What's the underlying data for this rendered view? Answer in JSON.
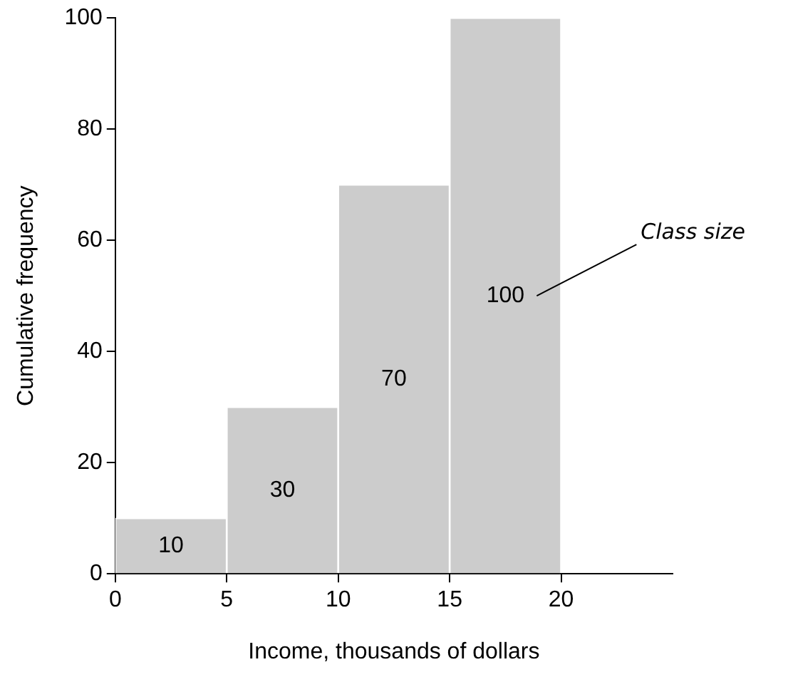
{
  "chart_data": {
    "type": "histogram",
    "xlabel": "Income, thousands of dollars",
    "ylabel": "Cumulative frequency",
    "bins": [
      0,
      5,
      10,
      15,
      20
    ],
    "values": [
      10,
      30,
      70,
      100
    ],
    "color": "#cccccc",
    "xlim": [
      0,
      25
    ],
    "xticks": [
      0,
      5,
      10,
      15,
      20
    ],
    "ylim": [
      0,
      100
    ],
    "yticks": [
      0,
      20,
      40,
      60,
      80,
      100
    ],
    "data_labels": true,
    "annotations": [
      "Class size"
    ]
  }
}
